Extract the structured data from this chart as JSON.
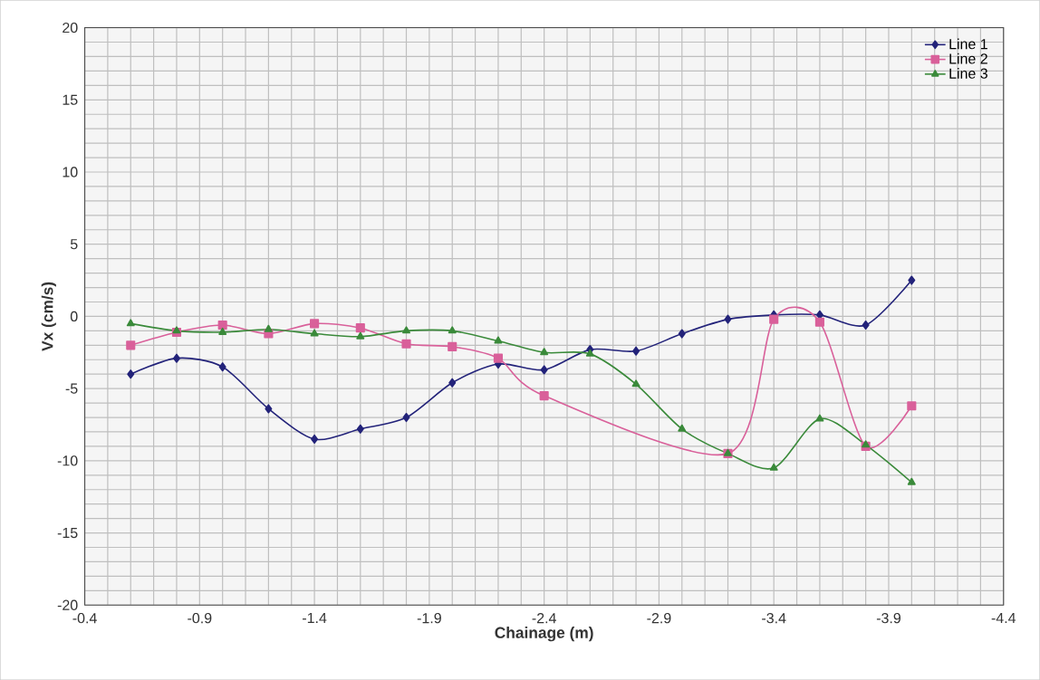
{
  "chart_data": {
    "type": "line",
    "xlabel": "Chainage (m)",
    "ylabel": "Vx (cm/s)",
    "x": [
      -0.6,
      -0.8,
      -1.0,
      -1.2,
      -1.4,
      -1.6,
      -1.8,
      -2.0,
      -2.2,
      -2.4,
      -2.6,
      -2.8,
      -3.0,
      -3.2,
      -3.4,
      -3.6,
      -3.8,
      -4.0
    ],
    "series": [
      {
        "name": "Line 1",
        "color": "#23237a",
        "marker": "diamond",
        "values": [
          -4.0,
          -2.9,
          -3.5,
          -6.4,
          -8.5,
          -7.8,
          -7.0,
          -4.6,
          -3.3,
          -3.7,
          -2.3,
          -2.4,
          -1.2,
          -0.2,
          0.1,
          0.1,
          -0.6,
          2.5
        ]
      },
      {
        "name": "Line 2",
        "color": "#d9609a",
        "marker": "square",
        "x": [
          -0.6,
          -0.8,
          -1.0,
          -1.2,
          -1.4,
          -1.6,
          -1.8,
          -2.0,
          -2.2,
          -2.4,
          -3.2,
          -3.4,
          -3.6,
          -3.8,
          -4.0
        ],
        "values": [
          -2.0,
          -1.1,
          -0.6,
          -1.2,
          -0.5,
          -0.8,
          -1.9,
          -2.1,
          -2.9,
          -5.5,
          -9.5,
          -0.2,
          -0.4,
          -9.0,
          -6.2
        ]
      },
      {
        "name": "Line 3",
        "color": "#3a8a3a",
        "marker": "triangle",
        "values": [
          -0.5,
          -1.0,
          -1.1,
          -0.9,
          -1.2,
          -1.4,
          -1.0,
          -1.0,
          -1.7,
          -2.5,
          -2.6,
          -4.7,
          -7.8,
          -9.5,
          -10.5,
          -7.1,
          -8.9,
          -11.5
        ]
      }
    ],
    "xlim": [
      -0.4,
      -4.4
    ],
    "xticks": [
      -0.4,
      -0.9,
      -1.4,
      -1.9,
      -2.4,
      -2.9,
      -3.4,
      -3.9,
      -4.4
    ],
    "ylim": [
      -20,
      20
    ],
    "yticks": [
      -20,
      -15,
      -10,
      -5,
      0,
      5,
      10,
      15,
      20
    ],
    "grid": true,
    "legend": "top right",
    "line_style": "solid"
  }
}
